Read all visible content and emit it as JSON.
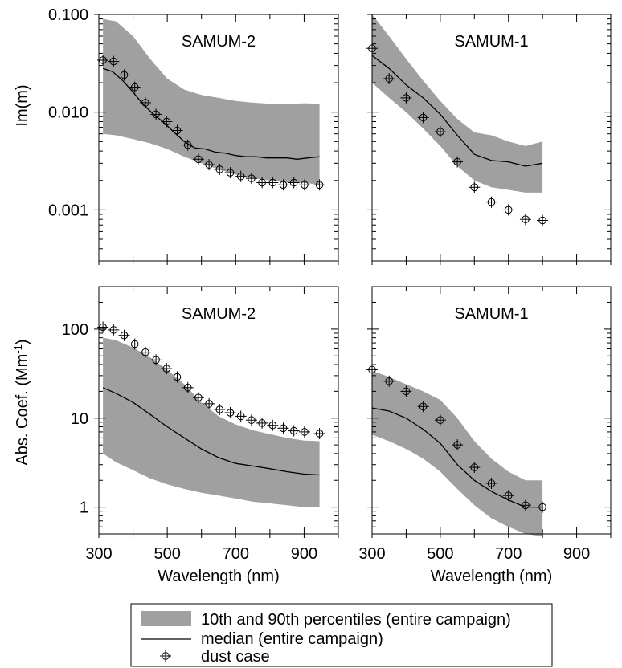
{
  "chart_data": [
    {
      "type": "line",
      "panel": "top-left",
      "title": "SAMUM-2",
      "ylabel": "Im(m)",
      "xlabel": "",
      "xlim": [
        300,
        1000
      ],
      "ylim": [
        0.0003,
        0.1
      ],
      "yscale": "log",
      "yticks": [
        0.001,
        0.01,
        0.1
      ],
      "ytick_labels": [
        "0.001",
        "0.010",
        "0.100"
      ],
      "band_x": [
        312,
        350,
        400,
        450,
        500,
        550,
        600,
        650,
        700,
        750,
        800,
        850,
        900,
        945
      ],
      "band_low": [
        0.006,
        0.0058,
        0.0053,
        0.0048,
        0.0042,
        0.0035,
        0.003,
        0.0026,
        0.0023,
        0.0021,
        0.002,
        0.0019,
        0.0019,
        0.0018
      ],
      "band_high": [
        0.09,
        0.085,
        0.06,
        0.035,
        0.022,
        0.017,
        0.015,
        0.014,
        0.013,
        0.0125,
        0.0122,
        0.0122,
        0.0123,
        0.0122
      ],
      "median_x": [
        312,
        340,
        370,
        400,
        430,
        460,
        490,
        520,
        550,
        580,
        610,
        640,
        670,
        700,
        730,
        760,
        790,
        820,
        850,
        880,
        910,
        945
      ],
      "median": [
        0.028,
        0.026,
        0.021,
        0.016,
        0.012,
        0.0095,
        0.0078,
        0.0062,
        0.005,
        0.0043,
        0.0042,
        0.0039,
        0.0038,
        0.0036,
        0.0035,
        0.0035,
        0.0034,
        0.0034,
        0.0034,
        0.0033,
        0.0034,
        0.0035
      ],
      "dust_x": [
        312,
        343,
        374,
        405,
        436,
        467,
        498,
        529,
        560,
        591,
        622,
        653,
        684,
        715,
        746,
        777,
        808,
        839,
        870,
        901,
        945
      ],
      "dust": [
        0.034,
        0.033,
        0.024,
        0.018,
        0.0125,
        0.0095,
        0.008,
        0.0065,
        0.0046,
        0.0033,
        0.0029,
        0.0026,
        0.0024,
        0.0022,
        0.0021,
        0.0019,
        0.0019,
        0.0018,
        0.0019,
        0.0018,
        0.0018
      ]
    },
    {
      "type": "line",
      "panel": "top-right",
      "title": "SAMUM-1",
      "ylabel": "",
      "xlabel": "",
      "xlim": [
        300,
        1000
      ],
      "ylim": [
        0.0003,
        0.1
      ],
      "yscale": "log",
      "band_x": [
        300,
        350,
        400,
        450,
        500,
        550,
        600,
        650,
        700,
        750,
        800
      ],
      "band_low": [
        0.02,
        0.014,
        0.01,
        0.0068,
        0.0045,
        0.0028,
        0.002,
        0.0017,
        0.0016,
        0.0015,
        0.0015
      ],
      "band_high": [
        0.1,
        0.06,
        0.035,
        0.021,
        0.013,
        0.0085,
        0.0062,
        0.0058,
        0.005,
        0.0045,
        0.005
      ],
      "median_x": [
        300,
        350,
        400,
        450,
        500,
        550,
        600,
        650,
        700,
        750,
        800
      ],
      "median": [
        0.038,
        0.028,
        0.019,
        0.014,
        0.0095,
        0.0058,
        0.0037,
        0.0032,
        0.0031,
        0.0028,
        0.003
      ],
      "dust_x": [
        300,
        350,
        400,
        450,
        500,
        550,
        600,
        650,
        700,
        750,
        800
      ],
      "dust": [
        0.045,
        0.022,
        0.014,
        0.0088,
        0.0063,
        0.0031,
        0.0017,
        0.0012,
        0.001,
        0.0008,
        0.00078
      ]
    },
    {
      "type": "line",
      "panel": "bottom-left",
      "title": "SAMUM-2",
      "ylabel": "Abs. Coef. (Mm",
      "ylabel_sup": "-1",
      "ylabel_suffix": ")",
      "xlabel": "Wavelength (nm)",
      "xlim": [
        300,
        1000
      ],
      "ylim": [
        0.5,
        300
      ],
      "yscale": "log",
      "yticks": [
        1,
        10,
        100
      ],
      "ytick_labels": [
        "1",
        "10",
        "100"
      ],
      "xticks": [
        300,
        500,
        700,
        900
      ],
      "xtick_labels": [
        "300",
        "500",
        "700",
        "900"
      ],
      "band_x": [
        312,
        350,
        400,
        450,
        500,
        550,
        600,
        650,
        700,
        750,
        800,
        850,
        900,
        945
      ],
      "band_low": [
        4,
        3.2,
        2.6,
        2.1,
        1.8,
        1.6,
        1.45,
        1.35,
        1.25,
        1.15,
        1.1,
        1.05,
        1.0,
        1.0
      ],
      "band_high": [
        80,
        75,
        62,
        48,
        35,
        24,
        15,
        10.5,
        8.5,
        7.3,
        6.6,
        6.0,
        5.6,
        5.5
      ],
      "median_x": [
        312,
        350,
        400,
        450,
        500,
        550,
        600,
        650,
        700,
        750,
        800,
        850,
        900,
        945
      ],
      "median": [
        22,
        19,
        15,
        11,
        8,
        6,
        4.5,
        3.6,
        3.1,
        2.9,
        2.7,
        2.5,
        2.35,
        2.3
      ],
      "dust_x": [
        312,
        343,
        374,
        405,
        436,
        467,
        498,
        529,
        560,
        591,
        622,
        653,
        684,
        715,
        746,
        777,
        808,
        839,
        870,
        901,
        945
      ],
      "dust": [
        105,
        98,
        85,
        68,
        55,
        45,
        36,
        29,
        22,
        17,
        14.5,
        12.5,
        11.5,
        10.5,
        9.5,
        8.8,
        8.3,
        7.7,
        7.2,
        7.0,
        6.7
      ]
    },
    {
      "type": "line",
      "panel": "bottom-right",
      "title": "SAMUM-1",
      "ylabel": "",
      "xlabel": "Wavelength (nm)",
      "xlim": [
        300,
        1000
      ],
      "ylim": [
        0.5,
        300
      ],
      "yscale": "log",
      "xticks": [
        300,
        500,
        700,
        900
      ],
      "xtick_labels": [
        "300",
        "500",
        "700",
        "900"
      ],
      "band_x": [
        300,
        350,
        400,
        450,
        500,
        550,
        600,
        650,
        700,
        750,
        800
      ],
      "band_low": [
        6.5,
        5.5,
        4.5,
        3.5,
        2.5,
        1.6,
        1.05,
        0.75,
        0.6,
        0.5,
        0.47
      ],
      "band_high": [
        34,
        29,
        24,
        20,
        16,
        10,
        5.5,
        3.5,
        2.5,
        2.0,
        2.0
      ],
      "median_x": [
        300,
        350,
        400,
        450,
        500,
        550,
        600,
        650,
        700,
        750,
        800
      ],
      "median": [
        13,
        12,
        10,
        7.5,
        5.2,
        3.0,
        2.0,
        1.5,
        1.2,
        1.0,
        1.0
      ],
      "dust_x": [
        300,
        350,
        400,
        450,
        500,
        550,
        600,
        650,
        700,
        750,
        800
      ],
      "dust": [
        35,
        26,
        20,
        13.5,
        9.5,
        5.0,
        2.8,
        1.85,
        1.35,
        1.05,
        1.0
      ]
    }
  ],
  "legend": {
    "band_label": "10th and 90th percentiles (entire campaign)",
    "median_label": "median (entire campaign)",
    "dust_label": "dust case"
  },
  "colors": {
    "band": "#a0a0a0",
    "median": "#000000",
    "marker": "#000000"
  }
}
